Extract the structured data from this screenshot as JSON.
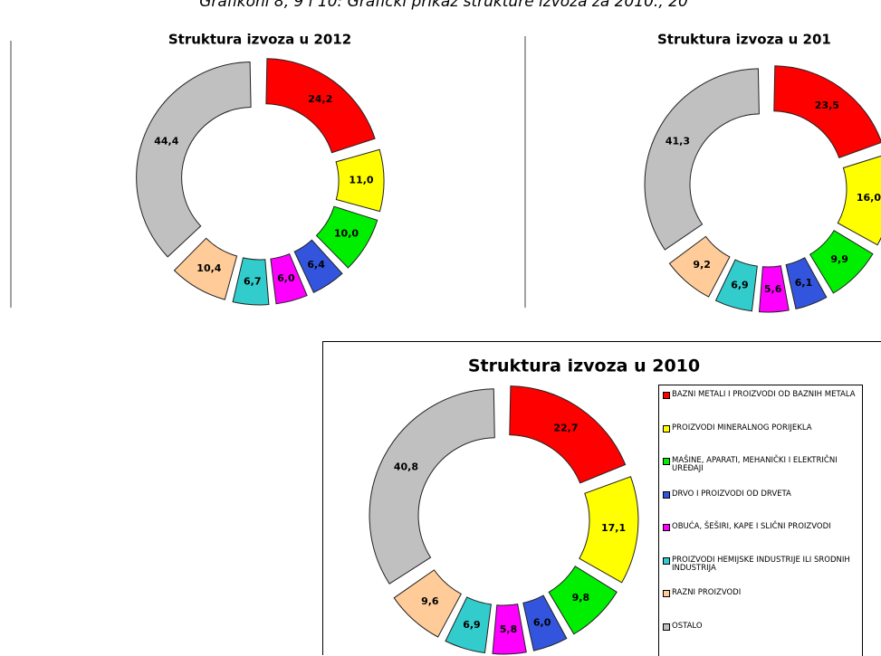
{
  "caption": "Grafikoni 8, 9 i 10: Grafički prikaz strukture izvoza za 2010., 20",
  "chart_data": [
    {
      "type": "donut",
      "title": "Struktura izvoza u 2012",
      "values": [
        24.2,
        11.0,
        10.0,
        6.4,
        6.0,
        6.7,
        10.4,
        44.4
      ],
      "value_labels": [
        "24,2",
        "11,0",
        "10,0",
        "6,4",
        "6,0",
        "6,7",
        "10,4",
        "44,4"
      ],
      "colors": [
        "#ff0000",
        "#ffff00",
        "#00ee00",
        "#3355dd",
        "#ff00ff",
        "#33cccc",
        "#ffcc99",
        "#c0c0c0"
      ]
    },
    {
      "type": "donut",
      "title": "Struktura izvoza u 201",
      "values": [
        23.5,
        16.0,
        9.9,
        6.1,
        5.6,
        6.9,
        9.2,
        41.3
      ],
      "value_labels": [
        "23,5",
        "16,0",
        "9,9",
        "6,1",
        "5,6",
        "6,9",
        "9,2",
        "41,3"
      ],
      "colors": [
        "#ff0000",
        "#ffff00",
        "#00ee00",
        "#3355dd",
        "#ff00ff",
        "#33cccc",
        "#ffcc99",
        "#c0c0c0"
      ]
    },
    {
      "type": "donut",
      "title": "Struktura izvoza u 2010",
      "categories": [
        "BAZNI METALI I PROIZVODI OD BAZNIH METALA",
        "PROIZVODI MINERALNOG PORIJEKLA",
        "MAŠINE, APARATI, MEHANIČKI I ELEKTRIČNI UREĐAJI",
        "DRVO I PROIZVODI OD DRVETA",
        "OBUĆA, ŠEŠIRI, KAPE I SLIČNI PROIZVODI",
        "PROIZVODI HEMIJSKE INDUSTRIJE ILI SRODNIH INDUSTRIJA",
        "RAZNI PROIZVODI",
        "OSTALO"
      ],
      "values": [
        22.7,
        17.1,
        9.8,
        6.0,
        5.8,
        6.9,
        9.6,
        40.8
      ],
      "value_labels": [
        "22,7",
        "17,1",
        "9,8",
        "6,0",
        "5,8",
        "6,9",
        "9,6",
        "40,8"
      ],
      "colors": [
        "#ff0000",
        "#ffff00",
        "#00ee00",
        "#3355dd",
        "#ff00ff",
        "#33cccc",
        "#ffcc99",
        "#c0c0c0"
      ]
    }
  ]
}
